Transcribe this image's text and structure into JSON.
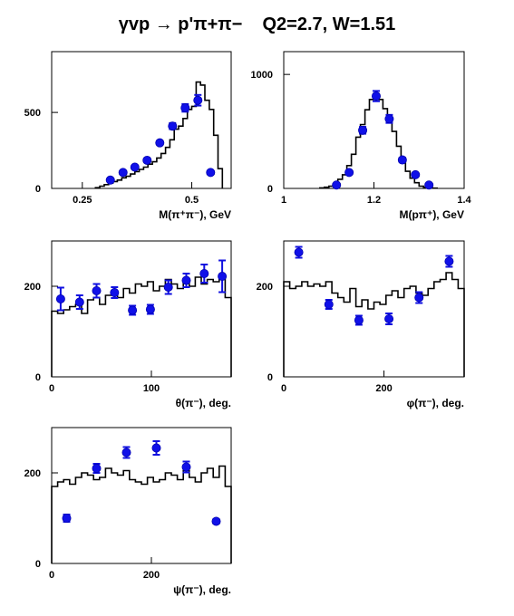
{
  "title": {
    "reaction": "γvp → p'π+π−",
    "kinematics": "Q2=2.7, W=1.51"
  },
  "chart_data": [
    {
      "type": "step",
      "xlabel": "M(π⁺π⁻), GeV",
      "xlim": [
        0.18,
        0.59
      ],
      "ylim": [
        0,
        900
      ],
      "xticks": [
        {
          "v": 0.25,
          "l": "0.25"
        },
        {
          "v": 0.5,
          "l": "0.5"
        }
      ],
      "yticks": [
        {
          "v": 0,
          "l": "0"
        },
        {
          "v": 500,
          "l": "500"
        }
      ],
      "hist": {
        "edges": [
          0.28,
          0.29,
          0.3,
          0.31,
          0.32,
          0.33,
          0.34,
          0.35,
          0.36,
          0.37,
          0.38,
          0.39,
          0.4,
          0.41,
          0.42,
          0.43,
          0.44,
          0.45,
          0.46,
          0.47,
          0.48,
          0.49,
          0.5,
          0.51,
          0.52,
          0.53,
          0.54,
          0.55,
          0.56,
          0.57
        ],
        "values": [
          5,
          15,
          25,
          35,
          45,
          55,
          70,
          80,
          95,
          110,
          125,
          140,
          160,
          175,
          200,
          230,
          270,
          320,
          390,
          410,
          460,
          520,
          540,
          700,
          680,
          580,
          520,
          350,
          130
        ]
      },
      "points": [
        {
          "x": 0.314,
          "y": 55,
          "err": 8
        },
        {
          "x": 0.343,
          "y": 105,
          "err": 8
        },
        {
          "x": 0.37,
          "y": 140,
          "err": 8
        },
        {
          "x": 0.398,
          "y": 185,
          "err": 10
        },
        {
          "x": 0.427,
          "y": 300,
          "err": 12
        },
        {
          "x": 0.456,
          "y": 410,
          "err": 20
        },
        {
          "x": 0.485,
          "y": 530,
          "err": 25
        },
        {
          "x": 0.514,
          "y": 580,
          "err": 35
        },
        {
          "x": 0.543,
          "y": 105,
          "err": 10
        }
      ]
    },
    {
      "type": "step",
      "xlabel": "M(pπ⁺), GeV",
      "xlim": [
        1.0,
        1.4
      ],
      "ylim": [
        0,
        1200
      ],
      "xticks": [
        {
          "v": 1.0,
          "l": "1"
        },
        {
          "v": 1.2,
          "l": "1.2"
        },
        {
          "v": 1.4,
          "l": "1.4"
        }
      ],
      "yticks": [
        {
          "v": 0,
          "l": "0"
        },
        {
          "v": 1000,
          "l": "1000"
        }
      ],
      "hist": {
        "edges": [
          1.08,
          1.09,
          1.1,
          1.11,
          1.12,
          1.13,
          1.14,
          1.15,
          1.16,
          1.17,
          1.18,
          1.19,
          1.2,
          1.21,
          1.22,
          1.23,
          1.24,
          1.25,
          1.26,
          1.27,
          1.28,
          1.29,
          1.3,
          1.31,
          1.32,
          1.33,
          1.34
        ],
        "values": [
          5,
          10,
          20,
          40,
          80,
          120,
          200,
          300,
          450,
          560,
          690,
          780,
          820,
          780,
          700,
          600,
          500,
          370,
          250,
          150,
          90,
          50,
          20,
          10,
          5,
          2
        ]
      },
      "points": [
        {
          "x": 1.117,
          "y": 30,
          "err": 8
        },
        {
          "x": 1.145,
          "y": 140,
          "err": 15
        },
        {
          "x": 1.175,
          "y": 510,
          "err": 30
        },
        {
          "x": 1.205,
          "y": 810,
          "err": 45
        },
        {
          "x": 1.234,
          "y": 610,
          "err": 35
        },
        {
          "x": 1.263,
          "y": 250,
          "err": 20
        },
        {
          "x": 1.292,
          "y": 120,
          "err": 12
        },
        {
          "x": 1.322,
          "y": 30,
          "err": 8
        }
      ]
    },
    {
      "type": "step",
      "xlabel": "θ(π⁻), deg.",
      "xlim": [
        0,
        180
      ],
      "ylim": [
        0,
        300
      ],
      "xticks": [
        {
          "v": 0,
          "l": "0"
        },
        {
          "v": 100,
          "l": "100"
        }
      ],
      "yticks": [
        {
          "v": 0,
          "l": "0"
        },
        {
          "v": 200,
          "l": "200"
        }
      ],
      "hist": {
        "edges": [
          0,
          6,
          12,
          18,
          24,
          30,
          36,
          42,
          48,
          54,
          60,
          66,
          72,
          78,
          84,
          90,
          96,
          102,
          108,
          114,
          120,
          126,
          132,
          138,
          144,
          150,
          156,
          162,
          168,
          174,
          180
        ],
        "values": [
          145,
          140,
          148,
          155,
          160,
          140,
          170,
          175,
          160,
          180,
          190,
          175,
          195,
          185,
          205,
          200,
          210,
          190,
          200,
          215,
          205,
          195,
          210,
          200,
          220,
          205,
          215,
          210,
          225,
          175
        ]
      },
      "points": [
        {
          "x": 9,
          "y": 172,
          "err": 25
        },
        {
          "x": 28,
          "y": 165,
          "err": 15
        },
        {
          "x": 45,
          "y": 190,
          "err": 15
        },
        {
          "x": 63,
          "y": 186,
          "err": 12
        },
        {
          "x": 81,
          "y": 147,
          "err": 10
        },
        {
          "x": 99,
          "y": 149,
          "err": 10
        },
        {
          "x": 117,
          "y": 198,
          "err": 15
        },
        {
          "x": 135,
          "y": 213,
          "err": 15
        },
        {
          "x": 153,
          "y": 228,
          "err": 20
        },
        {
          "x": 171,
          "y": 222,
          "err": 35
        }
      ]
    },
    {
      "type": "step",
      "xlabel": "φ(π⁻), deg.",
      "xlim": [
        0,
        360
      ],
      "ylim": [
        0,
        300
      ],
      "xticks": [
        {
          "v": 0,
          "l": "0"
        },
        {
          "v": 200,
          "l": "200"
        }
      ],
      "yticks": [
        {
          "v": 0,
          "l": "0"
        },
        {
          "v": 200,
          "l": "200"
        }
      ],
      "hist": {
        "edges": [
          0,
          12,
          24,
          36,
          48,
          60,
          72,
          84,
          96,
          108,
          120,
          132,
          144,
          156,
          168,
          180,
          192,
          204,
          216,
          228,
          240,
          252,
          264,
          276,
          288,
          300,
          312,
          324,
          336,
          348,
          360
        ],
        "values": [
          210,
          195,
          200,
          210,
          200,
          205,
          200,
          210,
          185,
          175,
          165,
          195,
          155,
          170,
          150,
          165,
          160,
          180,
          190,
          175,
          195,
          200,
          185,
          180,
          195,
          210,
          215,
          230,
          215,
          195
        ]
      },
      "points": [
        {
          "x": 30,
          "y": 275,
          "err": 12
        },
        {
          "x": 90,
          "y": 160,
          "err": 10
        },
        {
          "x": 150,
          "y": 125,
          "err": 10
        },
        {
          "x": 210,
          "y": 128,
          "err": 12
        },
        {
          "x": 270,
          "y": 175,
          "err": 12
        },
        {
          "x": 330,
          "y": 255,
          "err": 12
        }
      ]
    },
    {
      "type": "step",
      "xlabel": "ψ(π⁻), deg.",
      "xlim": [
        0,
        360
      ],
      "ylim": [
        0,
        300
      ],
      "xticks": [
        {
          "v": 0,
          "l": "0"
        },
        {
          "v": 200,
          "l": "200"
        }
      ],
      "yticks": [
        {
          "v": 0,
          "l": "0"
        },
        {
          "v": 200,
          "l": "200"
        }
      ],
      "hist": {
        "edges": [
          0,
          12,
          24,
          36,
          48,
          60,
          72,
          84,
          96,
          108,
          120,
          132,
          144,
          156,
          168,
          180,
          192,
          204,
          216,
          228,
          240,
          252,
          264,
          276,
          288,
          300,
          312,
          324,
          336,
          348,
          360
        ],
        "values": [
          170,
          180,
          185,
          175,
          190,
          200,
          195,
          185,
          190,
          210,
          200,
          195,
          205,
          185,
          180,
          175,
          190,
          180,
          185,
          200,
          195,
          185,
          205,
          190,
          180,
          200,
          210,
          190,
          215,
          170
        ]
      },
      "points": [
        {
          "x": 30,
          "y": 100,
          "err": 8
        },
        {
          "x": 90,
          "y": 210,
          "err": 10
        },
        {
          "x": 150,
          "y": 245,
          "err": 12
        },
        {
          "x": 210,
          "y": 255,
          "err": 15
        },
        {
          "x": 270,
          "y": 213,
          "err": 12
        },
        {
          "x": 330,
          "y": 93,
          "err": 5
        }
      ]
    }
  ]
}
